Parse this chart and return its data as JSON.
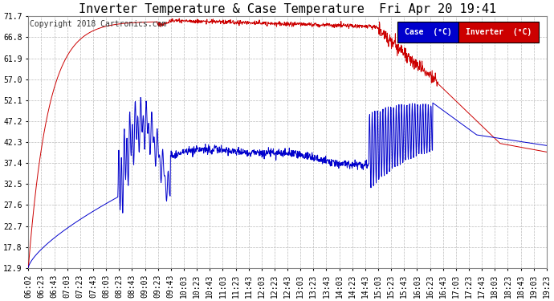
{
  "title": "Inverter Temperature & Case Temperature  Fri Apr 20 19:41",
  "copyright": "Copyright 2018 Cartronics.com",
  "background_color": "#ffffff",
  "plot_bg_color": "#ffffff",
  "grid_color": "#bbbbbb",
  "ylim": [
    12.9,
    71.7
  ],
  "yticks": [
    12.9,
    17.8,
    22.7,
    27.6,
    32.5,
    37.4,
    42.3,
    47.2,
    52.1,
    57.0,
    61.9,
    66.8,
    71.7
  ],
  "case_color": "#0000cc",
  "inverter_color": "#cc0000",
  "legend_case_bg": "#0000cc",
  "legend_inverter_bg": "#cc0000",
  "title_fontsize": 11,
  "tick_fontsize": 7,
  "copyright_fontsize": 7
}
